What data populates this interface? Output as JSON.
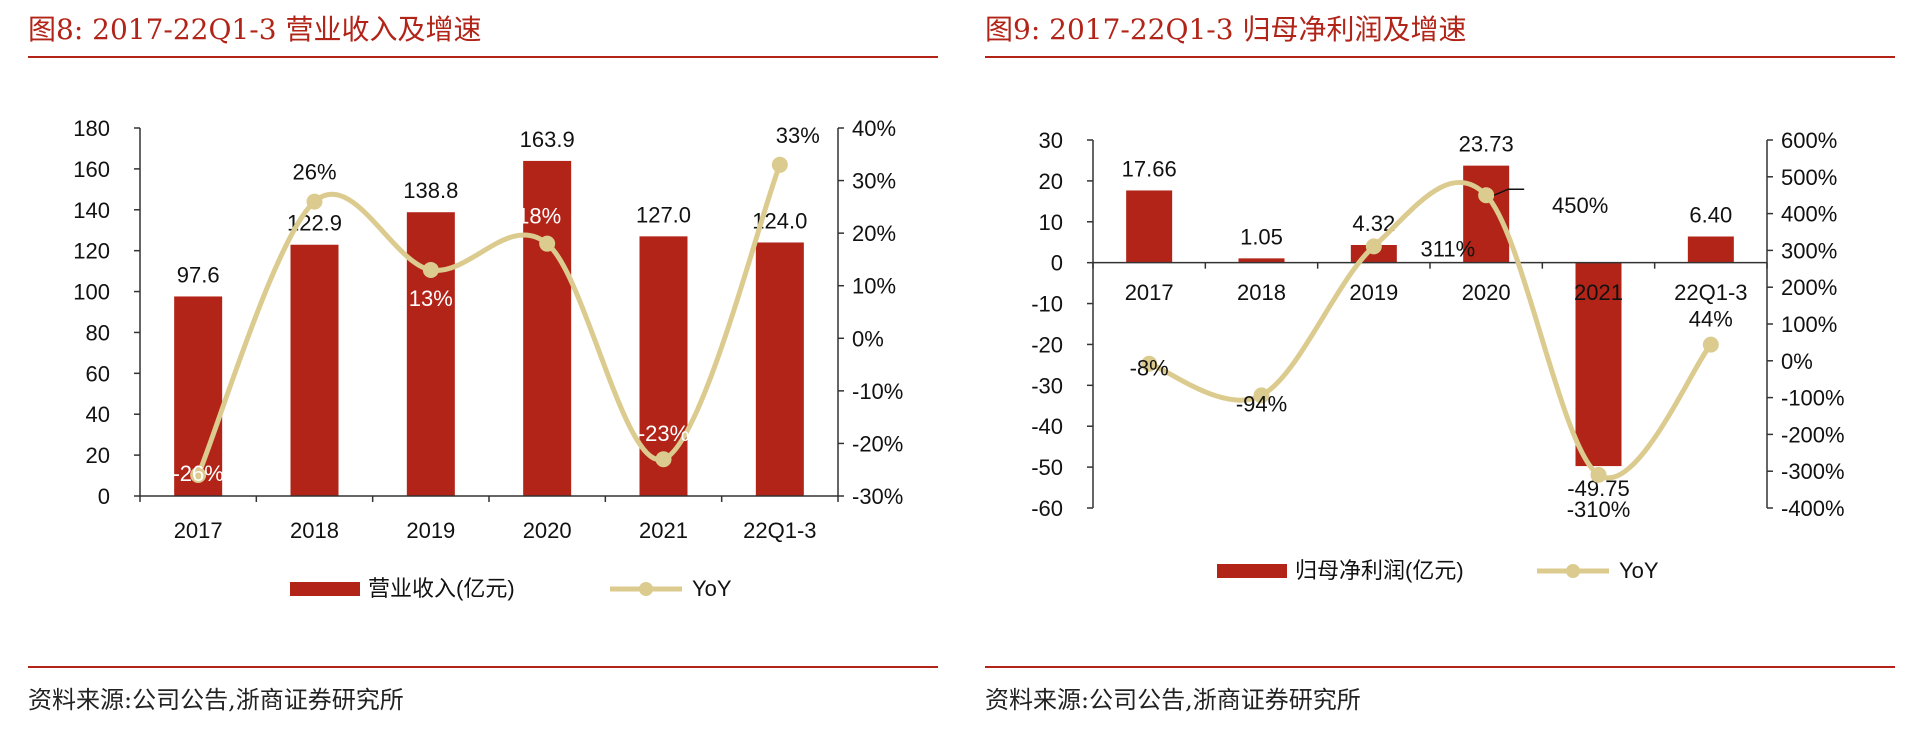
{
  "panels": [
    {
      "title": "图8:   2017-22Q1-3 营业收入及增速",
      "source": "资料来源:公司公告,浙商证券研究所"
    },
    {
      "title": "图9:   2017-22Q1-3 归母净利润及增速",
      "source": "资料来源:公司公告,浙商证券研究所"
    }
  ],
  "colors": {
    "bar": "#b22418",
    "line": "#dccb8f",
    "axis": "#333333",
    "accent": "#b22418"
  },
  "chart_data": [
    {
      "type": "bar",
      "categories": [
        "2017",
        "2018",
        "2019",
        "2020",
        "2021",
        "22Q1-3"
      ],
      "series": [
        {
          "name": "营业收入(亿元)",
          "type": "bar",
          "axis": "left",
          "values": [
            97.6,
            122.9,
            138.8,
            163.9,
            127.0,
            124.0
          ],
          "labels": [
            "97.6",
            "122.9",
            "138.8",
            "163.9",
            "127.0",
            "124.0"
          ]
        },
        {
          "name": "YoY",
          "type": "line",
          "axis": "right",
          "values": [
            -26,
            26,
            13,
            18,
            -23,
            33
          ],
          "labels": [
            "-26%",
            "26%",
            "13%",
            "18%",
            "-23%",
            "33%"
          ]
        }
      ],
      "ylim": [
        0,
        180
      ],
      "yticks": [
        0,
        20,
        40,
        60,
        80,
        100,
        120,
        140,
        160,
        180
      ],
      "y2lim": [
        -30,
        40
      ],
      "y2ticks": [
        -30,
        -20,
        -10,
        0,
        10,
        20,
        30,
        40
      ],
      "y2tick_labels": [
        "-30%",
        "-20%",
        "-10%",
        "0%",
        "10%",
        "20%",
        "30%",
        "40%"
      ],
      "legend": "bottom"
    },
    {
      "type": "bar",
      "categories": [
        "2017",
        "2018",
        "2019",
        "2020",
        "2021",
        "22Q1-3"
      ],
      "series": [
        {
          "name": "归母净利润(亿元)",
          "type": "bar",
          "axis": "left",
          "values": [
            17.66,
            1.05,
            4.32,
            23.73,
            -49.75,
            6.4
          ],
          "labels": [
            "17.66",
            "1.05",
            "4.32",
            "23.73",
            "-49.75",
            "6.40"
          ]
        },
        {
          "name": "YoY",
          "type": "line",
          "axis": "right",
          "values": [
            -8,
            -94,
            311,
            450,
            -310,
            44
          ],
          "labels": [
            "-8%",
            "-94%",
            "311%",
            "450%",
            "-310%",
            "44%"
          ]
        }
      ],
      "ylim": [
        -60,
        30
      ],
      "yticks": [
        -60,
        -50,
        -40,
        -30,
        -20,
        -10,
        0,
        10,
        20,
        30
      ],
      "y2lim": [
        -400,
        600
      ],
      "y2ticks": [
        -400,
        -300,
        -200,
        -100,
        0,
        100,
        200,
        300,
        400,
        500,
        600
      ],
      "y2tick_labels": [
        "-400%",
        "-300%",
        "-200%",
        "-100%",
        "0%",
        "100%",
        "200%",
        "300%",
        "400%",
        "500%",
        "600%"
      ],
      "legend": "bottom"
    }
  ]
}
